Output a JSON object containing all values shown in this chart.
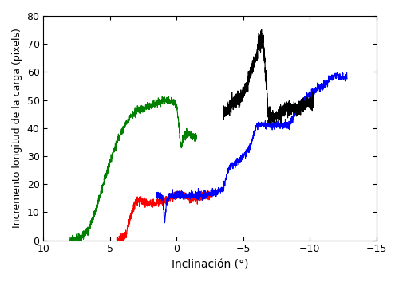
{
  "xlim": [
    10,
    -15
  ],
  "ylim": [
    0,
    80
  ],
  "xlabel": "Inclinación (°)",
  "ylabel": "Incremento longitud de la carga (pixels)",
  "xticks": [
    10,
    5,
    0,
    -5,
    -10,
    -15
  ],
  "yticks": [
    0,
    10,
    20,
    30,
    40,
    50,
    60,
    70,
    80
  ],
  "bg_color": "#ffffff",
  "colors": {
    "green": "#008000",
    "red": "#ff0000",
    "blue": "#0000ff",
    "black": "#000000"
  },
  "linewidth": 0.8
}
